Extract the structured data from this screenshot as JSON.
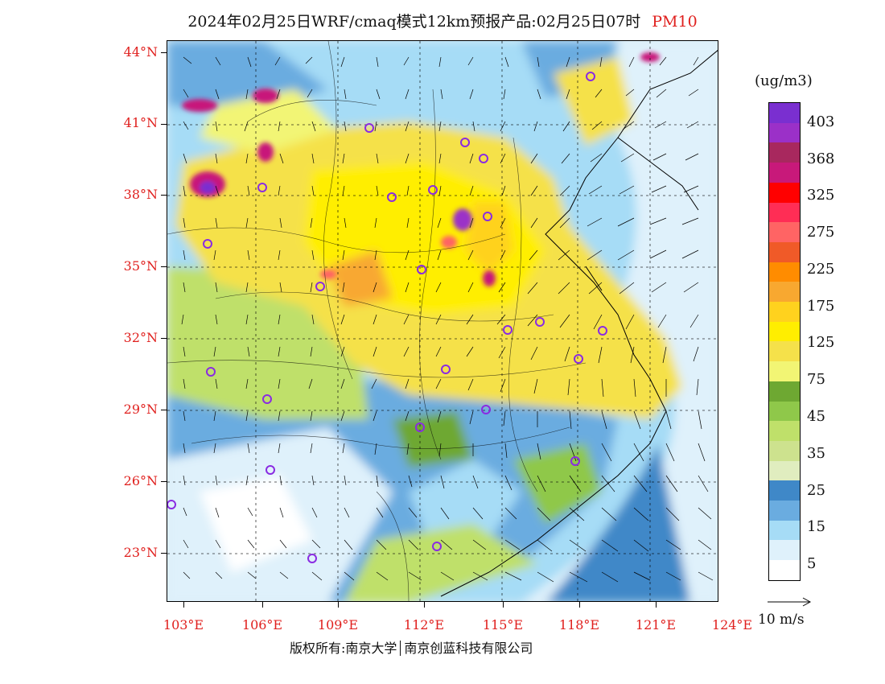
{
  "title": {
    "main": "2024年02月25日WRF/cmaq模式12km预报产品:02月25日07时",
    "pollutant": "PM10"
  },
  "axes": {
    "lat_labels": [
      "44°N",
      "41°N",
      "38°N",
      "35°N",
      "32°N",
      "29°N",
      "26°N",
      "23°N"
    ],
    "lon_labels": [
      "103°E",
      "106°E",
      "109°E",
      "112°E",
      "115°E",
      "118°E",
      "121°E",
      "124°E"
    ],
    "label_color": "#e0201e"
  },
  "colorbar": {
    "unit": "(ug/m3)",
    "labels": [
      "403",
      "368",
      "325",
      "275",
      "225",
      "175",
      "125",
      "75",
      "45",
      "35",
      "25",
      "15",
      "5"
    ],
    "colors_top_to_bottom": [
      "#7a2fd0",
      "#9b30c8",
      "#a8285e",
      "#c8197a",
      "#ff0000",
      "#ff2d55",
      "#ff6464",
      "#f05a28",
      "#ff8c00",
      "#f8a830",
      "#ffd21e",
      "#ffee00",
      "#f5e14a",
      "#f2f574",
      "#6ea832",
      "#8fc84a",
      "#bfe06a",
      "#cde28e",
      "#e0edbf",
      "#3f88c8",
      "#6aace0",
      "#a6dcf6",
      "#dff1fb",
      "#ffffff"
    ]
  },
  "vector_legend": {
    "label": "10 m/s"
  },
  "copyright": {
    "left": "版权所有:南京大学",
    "right": "南京创蓝科技有限公司"
  }
}
